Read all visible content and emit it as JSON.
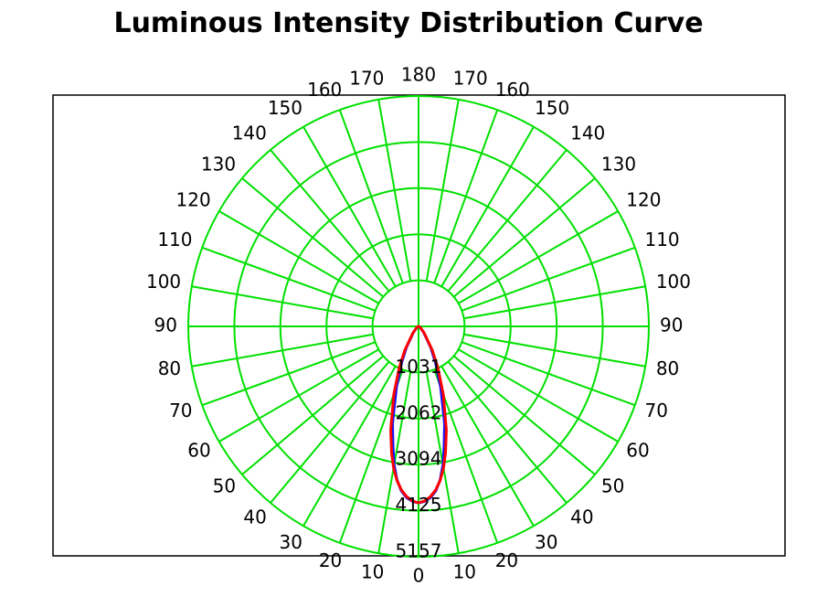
{
  "chart_data": {
    "type": "polar",
    "title": "Luminous Intensity Distribution Curve",
    "angle_labels": [
      "0",
      "10",
      "20",
      "30",
      "40",
      "50",
      "60",
      "70",
      "80",
      "90",
      "100",
      "110",
      "120",
      "130",
      "140",
      "150",
      "160",
      "170",
      "180"
    ],
    "radial_labels": [
      "1031",
      "2062",
      "3094",
      "4125",
      "5157"
    ],
    "radial_max": 5157,
    "grid_color": "#00e000",
    "series": [
      {
        "color": "#1010ff",
        "angles": [
          0,
          2,
          4,
          6,
          8,
          10,
          12,
          15,
          20,
          25,
          30,
          40,
          60,
          90
        ],
        "values": [
          3950,
          3920,
          3840,
          3700,
          3470,
          3150,
          2760,
          2250,
          1450,
          900,
          550,
          180,
          40,
          0
        ]
      },
      {
        "color": "#ff0000",
        "angles": [
          0,
          2,
          4,
          6,
          8,
          10,
          12,
          15,
          20,
          25,
          30,
          40,
          60,
          90
        ],
        "values": [
          3950,
          3910,
          3820,
          3680,
          3480,
          3220,
          2900,
          2400,
          1620,
          1020,
          620,
          200,
          45,
          0
        ]
      }
    ]
  }
}
